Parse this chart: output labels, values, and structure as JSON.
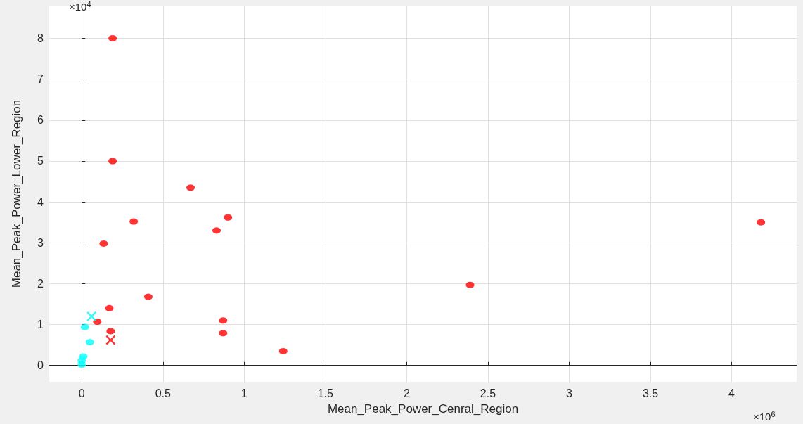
{
  "chart_data": {
    "type": "scatter",
    "xlabel": "Mean_Peak_Power_Cenral_Region",
    "ylabel": "Mean_Peak_Power_Lower_Region",
    "annotations": [
      "×10$^{4}$",
      "×10$^{6}$"
    ],
    "series": [
      {
        "color": "#ff0000",
        "marker": "circle",
        "x": [
          0.19,
          0.19,
          0.67,
          0.32,
          0.9,
          0.83,
          0.135,
          0.41,
          0.17,
          0.096,
          0.87,
          0.178,
          0.87,
          1.24,
          2.39,
          4.18
        ],
        "values": [
          8.0,
          5.0,
          4.35,
          3.52,
          3.62,
          3.3,
          2.98,
          1.68,
          1.4,
          1.07,
          1.1,
          0.84,
          0.79,
          0.35,
          1.97,
          3.5
        ]
      },
      {
        "color": "#ff0000",
        "marker": "cross",
        "x": [
          0.178
        ],
        "values": [
          0.62
        ]
      },
      {
        "color": "#00ffff",
        "marker": "circle",
        "x": [
          0.02,
          0.05,
          0.01,
          0.0,
          0.0
        ],
        "values": [
          0.94,
          0.57,
          0.22,
          0.12,
          0.02
        ]
      },
      {
        "color": "#00ffff",
        "marker": "cross",
        "x": [
          0.06
        ],
        "values": [
          1.2
        ]
      }
    ],
    "xlim": [
      -0.2,
      4.4
    ],
    "xticks": [
      0,
      0.5,
      1,
      1.5,
      2,
      2.5,
      3,
      3.5,
      4
    ],
    "ylim": [
      -0.4,
      8.8
    ],
    "yticks": [
      0,
      1,
      2,
      3,
      4,
      5,
      6,
      7,
      8
    ],
    "grid": true
  }
}
